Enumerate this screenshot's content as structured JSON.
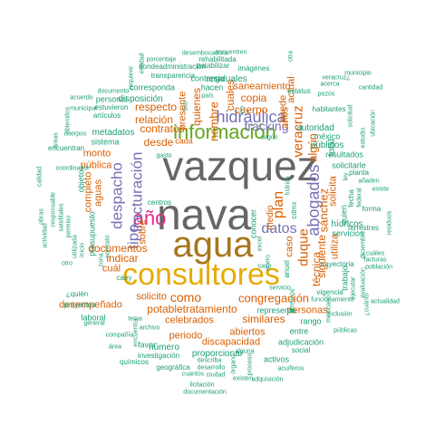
{
  "words": [
    {
      "t": "vazquez",
      "c": "c8"
    },
    {
      "t": "nava",
      "c": "c8"
    },
    {
      "t": "agua",
      "c": "c7"
    },
    {
      "t": "consultores",
      "c": "c6"
    },
    {
      "t": "información",
      "c": "c5"
    },
    {
      "t": "año",
      "c": "c4"
    },
    {
      "t": "hidráulica",
      "c": "c3"
    },
    {
      "t": "abogados",
      "c": "c3"
    },
    {
      "t": "despacho",
      "c": "c3"
    },
    {
      "t": "fracturación",
      "c": "c3"
    },
    {
      "t": "tipo",
      "c": "c3"
    },
    {
      "t": "datos",
      "c": "c3"
    },
    {
      "t": "plan",
      "c": "c2"
    },
    {
      "t": "fracking",
      "c": "c3"
    },
    {
      "t": "duque",
      "c": "c2"
    },
    {
      "t": "como",
      "c": "c2"
    },
    {
      "t": "congregación",
      "c": "c2"
    },
    {
      "t": "veracruz",
      "c": "c2"
    },
    {
      "t": "algún",
      "c": "c2"
    },
    {
      "t": "nombre",
      "c": "c2"
    },
    {
      "t": "quienes",
      "c": "c2"
    },
    {
      "t": "cuales",
      "c": "c2"
    },
    {
      "t": "contratos",
      "c": "c2"
    },
    {
      "t": "desde",
      "c": "c2"
    },
    {
      "t": "relación",
      "c": "c2"
    },
    {
      "t": "respecto",
      "c": "c2"
    },
    {
      "t": "cuerpo",
      "c": "c2"
    },
    {
      "t": "copia",
      "c": "c2"
    },
    {
      "t": "saneamiento",
      "c": "c2"
    },
    {
      "t": "sánchez",
      "c": "c2"
    },
    {
      "t": "siguiente",
      "c": "c2"
    },
    {
      "t": "técnica",
      "c": "c2"
    },
    {
      "t": "indicar",
      "c": "c2"
    },
    {
      "t": "documentos",
      "c": "c2"
    },
    {
      "t": "potabletratamiento",
      "c": "c2"
    },
    {
      "t": "celebrados",
      "c": "c2"
    },
    {
      "t": "similares",
      "c": "c2"
    },
    {
      "t": "solicito",
      "c": "c2"
    },
    {
      "t": "abiertos",
      "c": "c2"
    },
    {
      "t": "discapacidad",
      "c": "c2"
    },
    {
      "t": "periodo",
      "c": "c2"
    },
    {
      "t": "personas",
      "c": "c2"
    },
    {
      "t": "desempeñado",
      "c": "c2"
    },
    {
      "t": "solicita",
      "c": "c2"
    },
    {
      "t": "caso",
      "c": "c2"
    },
    {
      "t": "actual",
      "c": "c2"
    },
    {
      "t": "utiliza",
      "c": "c2"
    },
    {
      "t": "sobre",
      "c": "c2"
    },
    {
      "t": "cuál",
      "c": "c2"
    },
    {
      "t": "monto",
      "c": "c2"
    },
    {
      "t": "pública",
      "c": "c2"
    },
    {
      "t": "completo",
      "c": "c2"
    },
    {
      "t": "aguas",
      "c": "c2"
    },
    {
      "t": "puede",
      "c": "c2"
    },
    {
      "t": "años",
      "c": "c2"
    },
    {
      "t": "conocer",
      "c": "c1"
    },
    {
      "t": "medio",
      "c": "c2"
    },
    {
      "t": "cada",
      "c": "c2"
    },
    {
      "t": "presente",
      "c": "c2"
    },
    {
      "t": "residuales",
      "c": "c1"
    },
    {
      "t": "hacen",
      "c": "c1"
    },
    {
      "t": "contenga",
      "c": "c1"
    },
    {
      "t": "disposición",
      "c": "c1"
    },
    {
      "t": "corresponda",
      "c": "c1"
    },
    {
      "t": "personal",
      "c": "c1"
    },
    {
      "t": "estuvieron",
      "c": "c1"
    },
    {
      "t": "artículos",
      "c": "c1"
    },
    {
      "t": "metadatos",
      "c": "c1"
    },
    {
      "t": "sistema",
      "c": "c1"
    },
    {
      "t": "cuerpos",
      "c": "c1"
    },
    {
      "t": "encuentran",
      "c": "c1"
    },
    {
      "t": "presupuesto",
      "c": "c1"
    },
    {
      "t": "objeto",
      "c": "c1"
    },
    {
      "t": "autoridad",
      "c": "c1"
    },
    {
      "t": "públicos",
      "c": "c1"
    },
    {
      "t": "méxico",
      "c": "c1"
    },
    {
      "t": "resultados",
      "c": "c1"
    },
    {
      "t": "solicitarle",
      "c": "c1"
    },
    {
      "t": "hídricos",
      "c": "c1"
    },
    {
      "t": "quien",
      "c": "c1"
    },
    {
      "t": "servicios",
      "c": "c1"
    },
    {
      "t": "total",
      "c": "c1"
    },
    {
      "t": "favor",
      "c": "c1"
    },
    {
      "t": "número",
      "c": "c1"
    },
    {
      "t": "proporcionar",
      "c": "c1"
    },
    {
      "t": "adjudicación",
      "c": "c1"
    },
    {
      "t": "rango",
      "c": "c1"
    },
    {
      "t": "representa",
      "c": "c1"
    },
    {
      "t": "entre",
      "c": "c1"
    },
    {
      "t": "activos",
      "c": "c1"
    },
    {
      "t": "laboral",
      "c": "c1"
    },
    {
      "t": "¿quién",
      "c": "c1"
    },
    {
      "t": "proyectos",
      "c": "c1"
    },
    {
      "t": "investigación",
      "c": "c1"
    },
    {
      "t": "geográfica",
      "c": "c1"
    },
    {
      "t": "químicos",
      "c": "c1"
    },
    {
      "t": "licitación",
      "c": "c1"
    },
    {
      "t": "documentación",
      "c": "c1"
    },
    {
      "t": "desembocadura",
      "c": "c1"
    },
    {
      "t": "encuentren",
      "c": "c1"
    },
    {
      "t": "rehabilitada",
      "c": "c1"
    },
    {
      "t": "dondeadministración",
      "c": "c1"
    },
    {
      "t": "potabilizar",
      "c": "c1"
    },
    {
      "t": "transparencia",
      "c": "c1"
    },
    {
      "t": "imágenes",
      "c": "c1"
    },
    {
      "t": "porcentaje",
      "c": "c1"
    },
    {
      "t": "entidad",
      "c": "c1"
    },
    {
      "t": "requiere",
      "c": "c1"
    },
    {
      "t": "documento",
      "c": "c1"
    },
    {
      "t": "estatus",
      "c": "c1"
    },
    {
      "t": "pozos",
      "c": "c1"
    },
    {
      "t": "habitantes",
      "c": "c1"
    },
    {
      "t": "cantidad",
      "c": "c1"
    },
    {
      "t": "estudio",
      "c": "c1"
    },
    {
      "t": "planta",
      "c": "c1"
    },
    {
      "t": "añaden",
      "c": "c1"
    },
    {
      "t": "existe",
      "c": "c1"
    },
    {
      "t": "forma",
      "c": "c1"
    },
    {
      "t": "terrestres",
      "c": "c1"
    },
    {
      "t": "residuos",
      "c": "c1"
    },
    {
      "t": "¿cuáles",
      "c": "c1"
    },
    {
      "t": "facturas",
      "c": "c1"
    },
    {
      "t": "población",
      "c": "c1"
    },
    {
      "t": "trayectoria",
      "c": "c1"
    },
    {
      "t": "trabajo",
      "c": "c1"
    },
    {
      "t": "vigencia",
      "c": "c1"
    },
    {
      "t": "inclusión",
      "c": "c1"
    },
    {
      "t": "públicas",
      "c": "c1"
    },
    {
      "t": "social",
      "c": "c1"
    },
    {
      "t": "acuíferos",
      "c": "c1"
    },
    {
      "t": "describa",
      "c": "c1"
    },
    {
      "t": "ciudad",
      "c": "c1"
    },
    {
      "t": "desarrollo",
      "c": "c1"
    },
    {
      "t": "existen",
      "c": "c1"
    },
    {
      "t": "cuantos",
      "c": "c1"
    },
    {
      "t": "órgano",
      "c": "c1"
    },
    {
      "t": "proceso",
      "c": "c1"
    },
    {
      "t": "alguna",
      "c": "c1"
    },
    {
      "t": "general",
      "c": "c1"
    },
    {
      "t": "compañía",
      "c": "c1"
    },
    {
      "t": "área",
      "c": "c1"
    },
    {
      "t": "encuentra",
      "c": "c1"
    },
    {
      "t": "archivo",
      "c": "c1"
    },
    {
      "t": "tema",
      "c": "c1"
    },
    {
      "t": "caey",
      "c": "c1"
    },
    {
      "t": "zona",
      "c": "c1"
    },
    {
      "t": "contrato",
      "c": "c1"
    },
    {
      "t": "otro",
      "c": "c1"
    },
    {
      "t": "inicio",
      "c": "c1"
    },
    {
      "t": "utilizada",
      "c": "c1"
    },
    {
      "t": "permiso",
      "c": "c1"
    },
    {
      "t": "satelitales",
      "c": "c1"
    },
    {
      "t": "responsable",
      "c": "c1"
    },
    {
      "t": "coordinador",
      "c": "c1"
    },
    {
      "t": "obras",
      "c": "c1"
    },
    {
      "t": "calidad",
      "c": "c1"
    },
    {
      "t": "actividad",
      "c": "c1"
    },
    {
      "t": "obtenidos",
      "c": "c1"
    },
    {
      "t": "municipal",
      "c": "c1"
    },
    {
      "t": "acuerdo",
      "c": "c1"
    },
    {
      "t": "áreas",
      "c": "c1"
    },
    {
      "t": "centros",
      "c": "c1"
    },
    {
      "t": "excel",
      "c": "c1"
    },
    {
      "t": "enero",
      "c": "c1"
    },
    {
      "t": "caso",
      "c": "c1"
    },
    {
      "t": "anuel",
      "c": "c1"
    },
    {
      "t": "cdmx",
      "c": "c1"
    },
    {
      "t": "hídrico",
      "c": "c1"
    },
    {
      "t": "gasto",
      "c": "c1"
    },
    {
      "t": "uso",
      "c": "c1"
    },
    {
      "t": "país",
      "c": "c1"
    },
    {
      "t": "río",
      "c": "c1"
    },
    {
      "t": "según",
      "c": "c1"
    },
    {
      "t": "otra",
      "c": "c1"
    },
    {
      "t": "veracruz¿",
      "c": "c1"
    },
    {
      "t": "acerca",
      "c": "c1"
    },
    {
      "t": "municipio",
      "c": "c1"
    },
    {
      "t": "solicitud",
      "c": "c1"
    },
    {
      "t": "federal",
      "c": "c1"
    },
    {
      "t": "ley",
      "c": "c1"
    },
    {
      "t": "fecha",
      "c": "c1"
    },
    {
      "t": "ubicación",
      "c": "c1"
    },
    {
      "t": "ejecutar",
      "c": "c1"
    },
    {
      "t": "evaluación",
      "c": "c1"
    },
    {
      "t": "actualidad",
      "c": "c1"
    },
    {
      "t": "funcionamiento",
      "c": "c1"
    },
    {
      "t": "mexicano",
      "c": "c1"
    },
    {
      "t": "adquisición",
      "c": "c1"
    },
    {
      "t": "términos",
      "c": "c1"
    },
    {
      "t": "servicio",
      "c": "c1"
    },
    {
      "t": "¿cuánto",
      "c": "c1"
    },
    {
      "t": "diciembre",
      "c": "c1"
    },
    {
      "t": "informe",
      "c": "c1"
    }
  ]
}
